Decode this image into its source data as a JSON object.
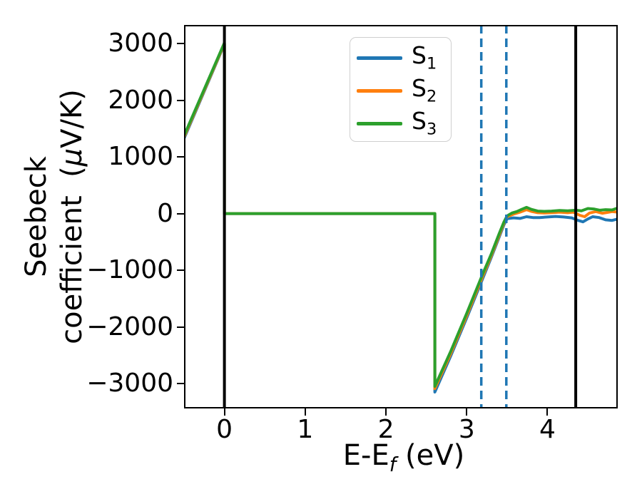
{
  "axes": {
    "xlabel_pre": "E-E",
    "xlabel_sub": "f",
    "xlabel_post": " (eV)",
    "ylabel_line1": "Seebeck",
    "ylabel_line2_pre": "coefficient  (",
    "ylabel_mu": "μ",
    "ylabel_line2_post": "V/K)"
  },
  "chart_data": {
    "type": "line",
    "title": "",
    "xlabel": "E-E_f (eV)",
    "ylabel": "Seebeck coefficient (μV/K)",
    "xlim": [
      -0.5,
      4.87
    ],
    "ylim": [
      -3440,
      3330
    ],
    "grid": false,
    "legend_position": "upper center",
    "x_ticks": [
      {
        "v": 0,
        "label": "0"
      },
      {
        "v": 1,
        "label": "1"
      },
      {
        "v": 2,
        "label": "2"
      },
      {
        "v": 3,
        "label": "3"
      },
      {
        "v": 4,
        "label": "4"
      }
    ],
    "y_ticks": [
      {
        "v": -3000,
        "label": "−3000"
      },
      {
        "v": -2000,
        "label": "−2000"
      },
      {
        "v": -1000,
        "label": "−1000"
      },
      {
        "v": 0,
        "label": "0"
      },
      {
        "v": 1000,
        "label": "1000"
      },
      {
        "v": 2000,
        "label": "2000"
      },
      {
        "v": 3000,
        "label": "3000"
      }
    ],
    "vlines": [
      {
        "x": 0.0,
        "color": "#000000",
        "style": "solid",
        "width": 4
      },
      {
        "x": 4.35,
        "color": "#000000",
        "style": "solid",
        "width": 4
      },
      {
        "x": 3.18,
        "color": "#1f77b4",
        "style": "dashed",
        "width": 3.5
      },
      {
        "x": 3.49,
        "color": "#1f77b4",
        "style": "dashed",
        "width": 3.5
      }
    ],
    "series": [
      {
        "name": "S",
        "sub": "1",
        "color": "#1f77b4",
        "x": [
          -0.5,
          0,
          0,
          2.605,
          2.605,
          2.8,
          3.0,
          3.2,
          3.3,
          3.4,
          3.46,
          3.5,
          3.58,
          3.66,
          3.74,
          3.82,
          3.9,
          4.0,
          4.1,
          4.2,
          4.3,
          4.38,
          4.44,
          4.5,
          4.56,
          4.64,
          4.72,
          4.8,
          4.87
        ],
        "y": [
          1325,
          2990,
          0,
          0,
          -3150,
          -2520,
          -1840,
          -1140,
          -790,
          -420,
          -200,
          -90,
          -75,
          -85,
          -55,
          -70,
          -70,
          -60,
          -50,
          -60,
          -75,
          -120,
          -145,
          -95,
          -55,
          -70,
          -110,
          -120,
          -95
        ]
      },
      {
        "name": "S",
        "sub": "2",
        "color": "#ff7f0e",
        "x": [
          -0.5,
          0,
          0,
          2.605,
          2.605,
          2.8,
          3.0,
          3.2,
          3.3,
          3.4,
          3.46,
          3.5,
          3.58,
          3.66,
          3.74,
          3.8,
          3.88,
          3.96,
          4.05,
          4.15,
          4.25,
          4.32,
          4.4,
          4.46,
          4.52,
          4.6,
          4.68,
          4.74,
          4.8,
          4.87
        ],
        "y": [
          1350,
          3000,
          0,
          0,
          -3090,
          -2480,
          -1800,
          -1100,
          -760,
          -390,
          -170,
          -55,
          -10,
          25,
          70,
          40,
          15,
          10,
          15,
          25,
          15,
          25,
          -30,
          -55,
          10,
          35,
          5,
          20,
          35,
          25
        ]
      },
      {
        "name": "S",
        "sub": "3",
        "color": "#2ca02c",
        "x": [
          -0.5,
          0,
          0,
          2.605,
          2.605,
          2.8,
          3.0,
          3.2,
          3.3,
          3.4,
          3.46,
          3.5,
          3.56,
          3.62,
          3.68,
          3.74,
          3.8,
          3.88,
          3.96,
          4.05,
          4.15,
          4.25,
          4.35,
          4.42,
          4.5,
          4.58,
          4.65,
          4.72,
          4.8,
          4.87
        ],
        "y": [
          1375,
          3015,
          0,
          0,
          -3050,
          -2440,
          -1760,
          -1060,
          -730,
          -360,
          -150,
          -40,
          10,
          35,
          75,
          110,
          75,
          45,
          40,
          45,
          55,
          50,
          60,
          50,
          90,
          80,
          60,
          70,
          65,
          100
        ]
      }
    ]
  }
}
